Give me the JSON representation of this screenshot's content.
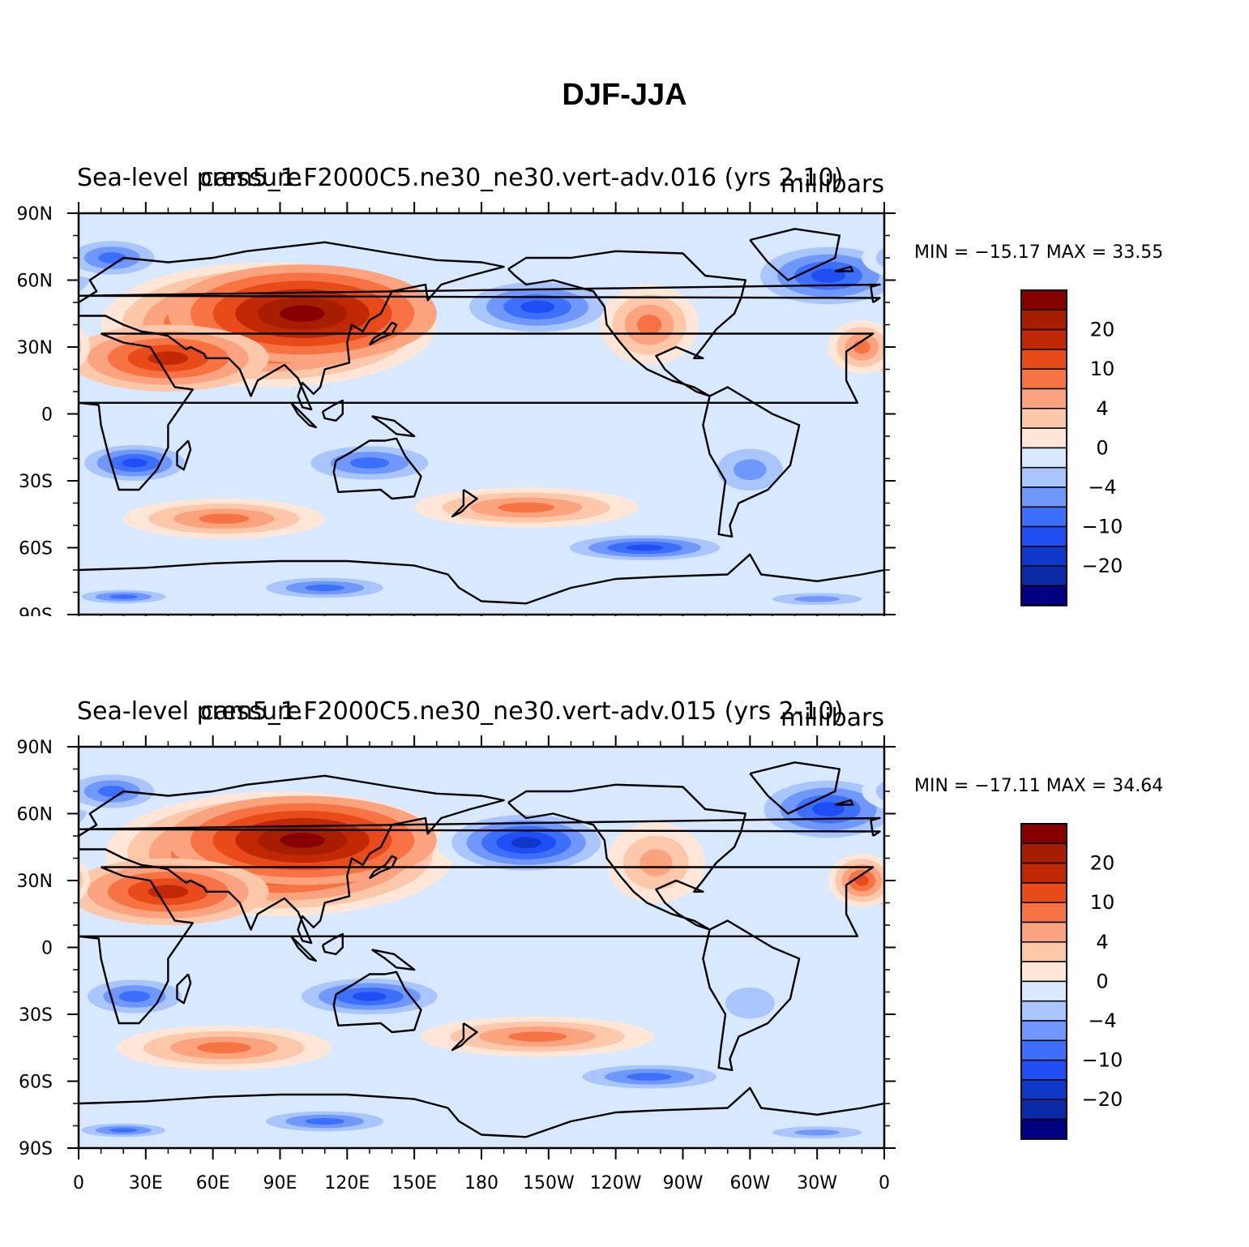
{
  "title": "DJF-JJA",
  "colors": {
    "levels": [
      "#000080",
      "#0a2aa8",
      "#1038c8",
      "#1f4ef5",
      "#3c70fa",
      "#6f97fc",
      "#a8c6fd",
      "#d7e8ff",
      "#ffe6d6",
      "#fdc7a9",
      "#fba27e",
      "#f77343",
      "#e84a1a",
      "#c02806",
      "#a61d00",
      "#870000"
    ]
  },
  "colorbar": {
    "labels": [
      "20",
      "10",
      "4",
      "0",
      "−4",
      "−10",
      "−20"
    ]
  },
  "x_ticks": [
    "0",
    "30E",
    "60E",
    "90E",
    "120E",
    "150E",
    "180",
    "150W",
    "120W",
    "90W",
    "60W",
    "30W",
    "0"
  ],
  "y_ticks": [
    "90N",
    "60N",
    "30N",
    "0",
    "30S",
    "60S",
    "90S"
  ],
  "panels": [
    {
      "left_title": "Sea-level pressure",
      "center_title": "cam5_1.F2000C5.ne30_ne30.vert-adv.016 (yrs 2-10)",
      "units": "millibars",
      "minmax": "MIN = −15.17  MAX =   33.55"
    },
    {
      "left_title": "Sea-level pressure",
      "center_title": "cam5_1.F2000C5.ne30_ne30.vert-adv.015 (yrs 2-10)",
      "units": "millibars",
      "minmax": "MIN = −17.11  MAX =   34.64"
    }
  ]
}
